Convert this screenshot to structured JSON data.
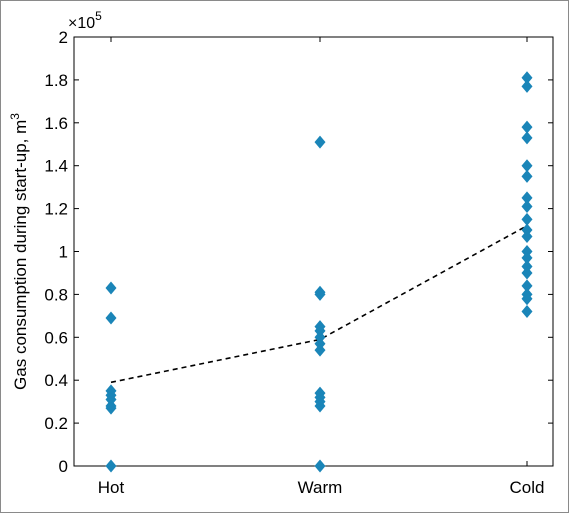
{
  "chart_data": {
    "type": "scatter",
    "title": "",
    "xlabel": "",
    "ylabel": "Gas consumption during start-up, m",
    "ylabel_superscript": "3",
    "y_exponent_base": "×10",
    "y_exponent_power": "5",
    "categories": [
      "Hot",
      "Warm",
      "Cold"
    ],
    "ylim": [
      0,
      2
    ],
    "yticks": [
      "0",
      "0.2",
      "0.4",
      "0.6",
      "0.8",
      "1",
      "1.2",
      "1.4",
      "1.6",
      "1.8",
      "2"
    ],
    "series": [
      {
        "points": [
          {
            "x": "Hot",
            "y": 0.83
          },
          {
            "x": "Hot",
            "y": 0.69
          },
          {
            "x": "Hot",
            "y": 0.35
          },
          {
            "x": "Hot",
            "y": 0.33
          },
          {
            "x": "Hot",
            "y": 0.31
          },
          {
            "x": "Hot",
            "y": 0.28
          },
          {
            "x": "Hot",
            "y": 0.27
          },
          {
            "x": "Hot",
            "y": 0.0
          },
          {
            "x": "Warm",
            "y": 1.51
          },
          {
            "x": "Warm",
            "y": 0.81
          },
          {
            "x": "Warm",
            "y": 0.8
          },
          {
            "x": "Warm",
            "y": 0.65
          },
          {
            "x": "Warm",
            "y": 0.63
          },
          {
            "x": "Warm",
            "y": 0.6
          },
          {
            "x": "Warm",
            "y": 0.57
          },
          {
            "x": "Warm",
            "y": 0.54
          },
          {
            "x": "Warm",
            "y": 0.34
          },
          {
            "x": "Warm",
            "y": 0.32
          },
          {
            "x": "Warm",
            "y": 0.3
          },
          {
            "x": "Warm",
            "y": 0.28
          },
          {
            "x": "Warm",
            "y": 0.0
          },
          {
            "x": "Cold",
            "y": 1.81
          },
          {
            "x": "Cold",
            "y": 1.77
          },
          {
            "x": "Cold",
            "y": 1.58
          },
          {
            "x": "Cold",
            "y": 1.53
          },
          {
            "x": "Cold",
            "y": 1.4
          },
          {
            "x": "Cold",
            "y": 1.35
          },
          {
            "x": "Cold",
            "y": 1.25
          },
          {
            "x": "Cold",
            "y": 1.21
          },
          {
            "x": "Cold",
            "y": 1.15
          },
          {
            "x": "Cold",
            "y": 1.1
          },
          {
            "x": "Cold",
            "y": 1.07
          },
          {
            "x": "Cold",
            "y": 1.0
          },
          {
            "x": "Cold",
            "y": 0.97
          },
          {
            "x": "Cold",
            "y": 0.93
          },
          {
            "x": "Cold",
            "y": 0.9
          },
          {
            "x": "Cold",
            "y": 0.84
          },
          {
            "x": "Cold",
            "y": 0.8
          },
          {
            "x": "Cold",
            "y": 0.78
          },
          {
            "x": "Cold",
            "y": 0.72
          }
        ],
        "color": "#1a85b8",
        "marker": "diamond"
      },
      {
        "type": "line",
        "style": "dashed",
        "color": "#000000",
        "values": [
          0.39,
          0.59,
          1.12
        ]
      }
    ],
    "grid": false,
    "legend": "none"
  }
}
